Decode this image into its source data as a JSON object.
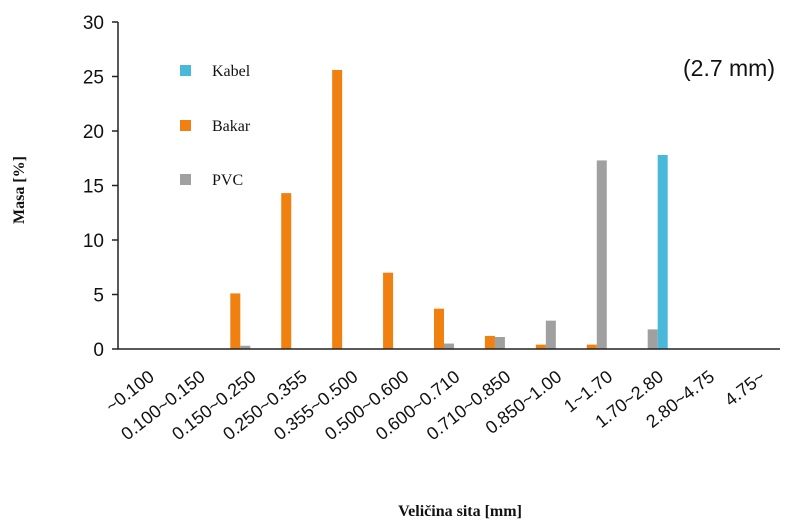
{
  "chart_data": {
    "type": "bar",
    "annotation": "(2.7 mm)",
    "xlabel": "Veličina sita [mm]",
    "ylabel": "Masa [%]",
    "ylim": [
      0,
      30
    ],
    "yticks": [
      0,
      5,
      10,
      15,
      20,
      25,
      30
    ],
    "categories": [
      "~0.100",
      "0.100~0.150",
      "0.150~0.250",
      "0.250~0.355",
      "0.355~0.500",
      "0.500~0.600",
      "0.600~0.710",
      "0.710~0.850",
      "0.850~1.00",
      "1~1.70",
      "1.70~2.80",
      "2.80~4.75",
      "4.75~"
    ],
    "series": [
      {
        "name": "Kabel",
        "color": "#4ab8d8",
        "values": [
          0,
          0,
          0,
          0,
          0,
          0,
          0,
          0,
          0,
          0,
          17.8,
          0,
          0
        ]
      },
      {
        "name": "Bakar",
        "color": "#f08010",
        "values": [
          0,
          0,
          5.1,
          14.3,
          25.6,
          7.0,
          3.7,
          1.2,
          0.4,
          0.4,
          0,
          0,
          0
        ]
      },
      {
        "name": "PVC",
        "color": "#a0a0a0",
        "values": [
          0,
          0,
          0.3,
          0,
          0,
          0,
          0.5,
          1.1,
          2.6,
          17.3,
          1.8,
          0,
          0
        ]
      }
    ],
    "legend_position": "top-left",
    "grid": false
  }
}
